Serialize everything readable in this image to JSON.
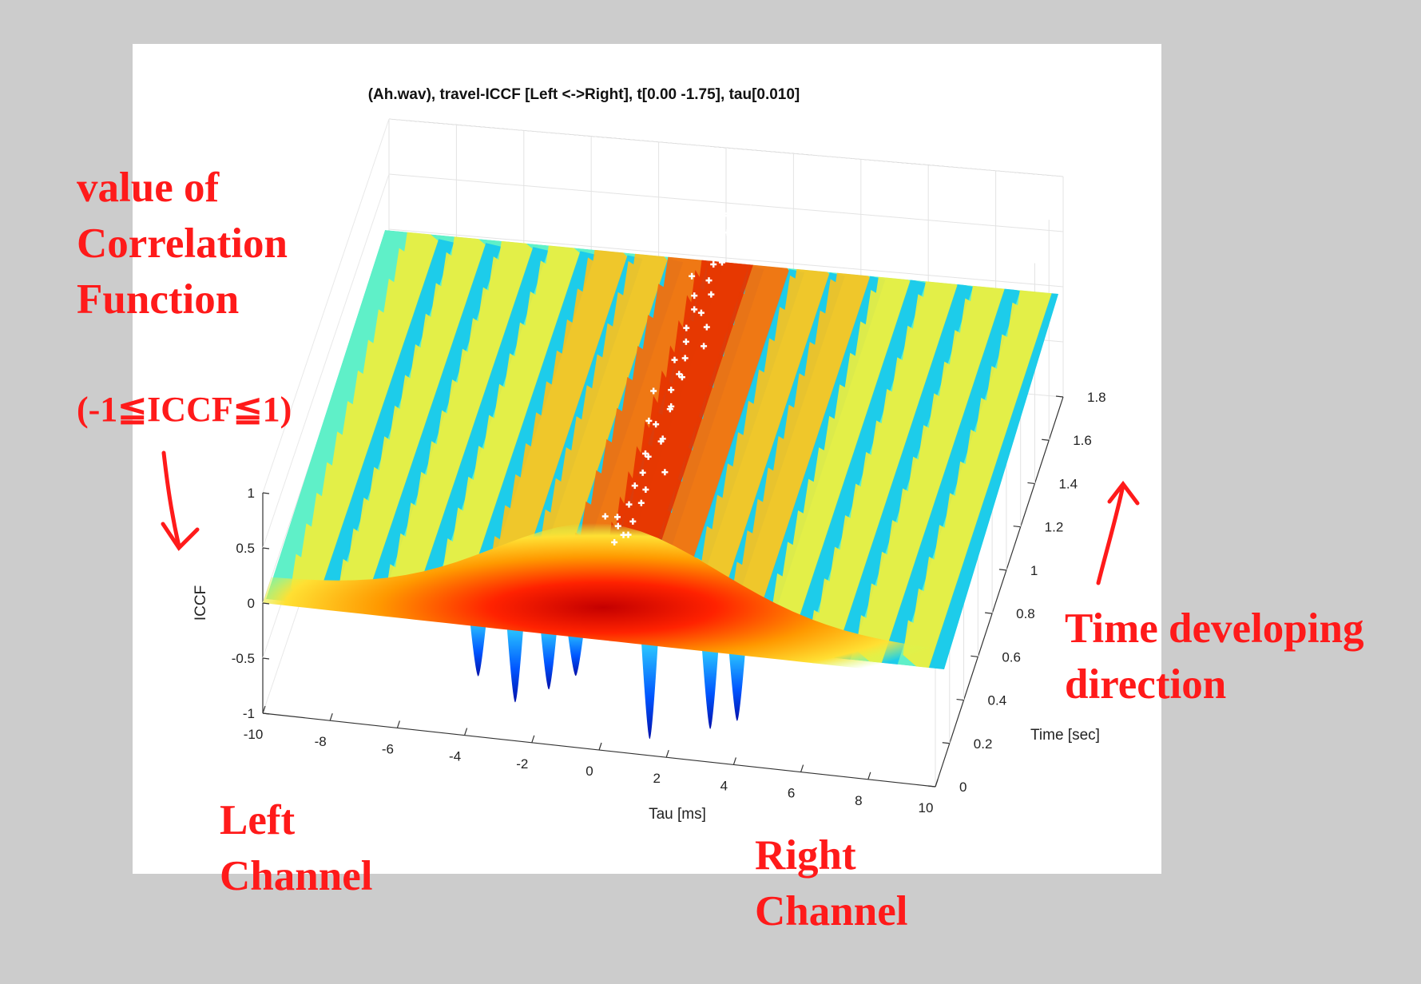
{
  "chart_data": {
    "type": "surface3d",
    "title": "(Ah.wav), travel-ICCF [Left <->Right], t[0.00 -1.75], tau[0.010]",
    "xlabel": "Tau [ms]",
    "ylabel": "Time [sec]",
    "zlabel": "ICCF",
    "xlim": [
      -10,
      10
    ],
    "ylim": [
      0,
      1.8
    ],
    "zlim": [
      -1,
      1
    ],
    "x_ticks": [
      "-10",
      "-8",
      "-6",
      "-4",
      "-2",
      "0",
      "2",
      "4",
      "6",
      "8",
      "10"
    ],
    "y_ticks": [
      "0",
      "0.2",
      "0.4",
      "0.6",
      "0.8",
      "1",
      "1.2",
      "1.4",
      "1.6",
      "1.8"
    ],
    "z_ticks": [
      "1",
      "0.5",
      "0",
      "-0.5",
      "-1"
    ],
    "colormap": "jet",
    "grid": true,
    "peak_marker_color": "#ffffff"
  },
  "annotations": {
    "value_label": [
      "value of",
      "Correlation",
      "Function"
    ],
    "range_label": "(-1≦ICCF≦1)",
    "time_label": [
      "Time developing",
      "direction"
    ],
    "left_channel": [
      "Left",
      "Channel"
    ],
    "right_channel": [
      "Right",
      "Channel"
    ],
    "color": "#ff1a1a"
  }
}
